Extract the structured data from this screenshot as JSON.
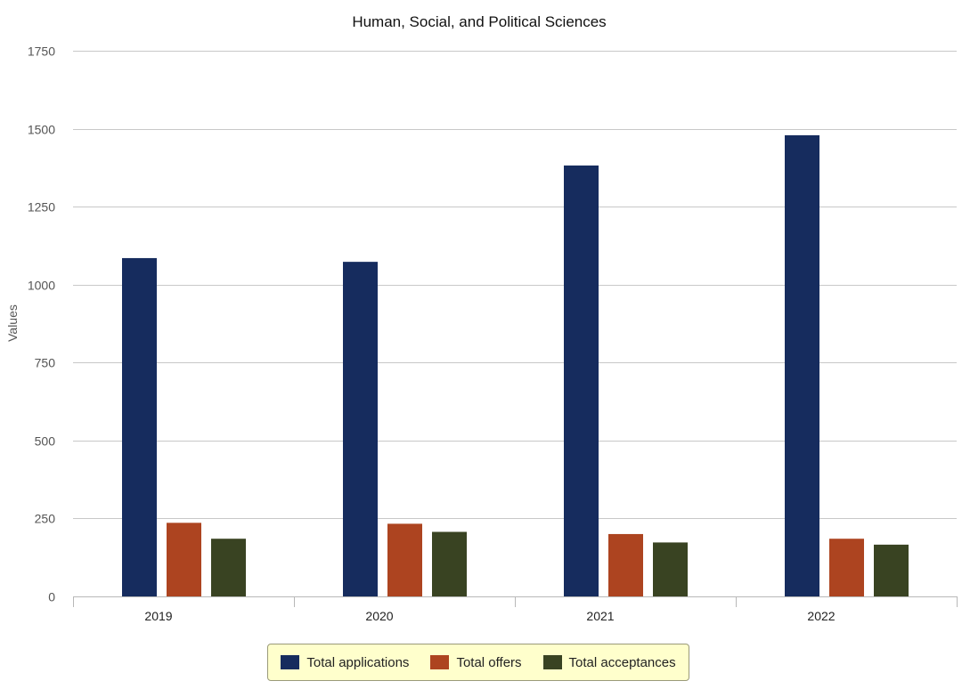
{
  "chart_data": {
    "type": "bar",
    "title": "Human, Social, and Political Sciences",
    "xlabel": "",
    "ylabel": "Values",
    "categories": [
      "2019",
      "2020",
      "2021",
      "2022"
    ],
    "ylim": [
      0,
      1750
    ],
    "yticks": [
      0,
      250,
      500,
      750,
      1000,
      1250,
      1500,
      1750
    ],
    "grid": true,
    "legend_position": "bottom",
    "series": [
      {
        "name": "Total applications",
        "color": "#162c5e",
        "values": [
          1085,
          1073,
          1382,
          1479
        ]
      },
      {
        "name": "Total offers",
        "color": "#ad4420",
        "values": [
          236,
          233,
          200,
          185
        ]
      },
      {
        "name": "Total acceptances",
        "color": "#394322",
        "values": [
          185,
          207,
          173,
          166
        ]
      }
    ]
  }
}
